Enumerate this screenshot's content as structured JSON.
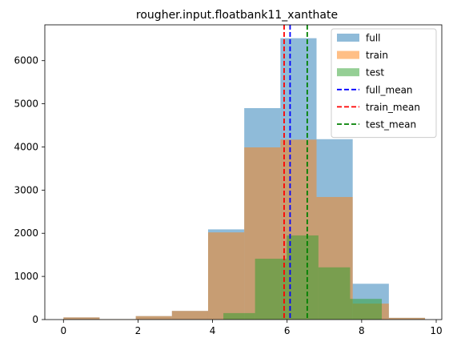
{
  "chart_data": {
    "type": "bar",
    "title": "rougher.input.floatbank11_xanthate",
    "xlabel": "",
    "ylabel": "",
    "xlim": [
      -0.5,
      10.15
    ],
    "ylim": [
      0,
      6830
    ],
    "x_ticks": [
      0,
      2,
      4,
      6,
      8,
      10
    ],
    "y_ticks": [
      0,
      1000,
      2000,
      3000,
      4000,
      5000,
      6000
    ],
    "series": [
      {
        "name": "full",
        "color": "#1f77b4",
        "opacity": 0.5,
        "bins": [
          {
            "x0": 0.0,
            "x1": 0.97,
            "count": 50
          },
          {
            "x0": 0.97,
            "x1": 1.94,
            "count": 10
          },
          {
            "x0": 1.94,
            "x1": 2.91,
            "count": 80
          },
          {
            "x0": 2.91,
            "x1": 3.88,
            "count": 200
          },
          {
            "x0": 3.88,
            "x1": 4.85,
            "count": 2090
          },
          {
            "x0": 4.85,
            "x1": 5.82,
            "count": 4900
          },
          {
            "x0": 5.82,
            "x1": 6.79,
            "count": 6520
          },
          {
            "x0": 6.79,
            "x1": 7.76,
            "count": 4180
          },
          {
            "x0": 7.76,
            "x1": 8.73,
            "count": 830
          },
          {
            "x0": 8.73,
            "x1": 9.7,
            "count": 40
          }
        ]
      },
      {
        "name": "train",
        "color": "#ff7f0e",
        "opacity": 0.5,
        "bins": [
          {
            "x0": 0.0,
            "x1": 0.97,
            "count": 50
          },
          {
            "x0": 0.97,
            "x1": 1.94,
            "count": 10
          },
          {
            "x0": 1.94,
            "x1": 2.91,
            "count": 80
          },
          {
            "x0": 2.91,
            "x1": 3.88,
            "count": 200
          },
          {
            "x0": 3.88,
            "x1": 4.85,
            "count": 2020
          },
          {
            "x0": 4.85,
            "x1": 5.82,
            "count": 3990
          },
          {
            "x0": 5.82,
            "x1": 6.79,
            "count": 4170
          },
          {
            "x0": 6.79,
            "x1": 7.76,
            "count": 2840
          },
          {
            "x0": 7.76,
            "x1": 8.73,
            "count": 370
          },
          {
            "x0": 8.73,
            "x1": 9.7,
            "count": 40
          }
        ]
      },
      {
        "name": "test",
        "color": "#2ca02c",
        "opacity": 0.5,
        "bins": [
          {
            "x0": 4.29,
            "x1": 5.14,
            "count": 150
          },
          {
            "x0": 5.14,
            "x1": 5.99,
            "count": 1410
          },
          {
            "x0": 5.99,
            "x1": 6.84,
            "count": 1950
          },
          {
            "x0": 6.84,
            "x1": 7.69,
            "count": 1210
          },
          {
            "x0": 7.69,
            "x1": 8.54,
            "count": 480
          }
        ]
      }
    ],
    "mean_lines": [
      {
        "name": "full_mean",
        "x": 6.08,
        "color": "#0000ff"
      },
      {
        "name": "train_mean",
        "x": 5.92,
        "color": "#ff0000"
      },
      {
        "name": "test_mean",
        "x": 6.54,
        "color": "#008000"
      }
    ],
    "legend": {
      "placement": "top-right",
      "entries": [
        {
          "label": "full",
          "kind": "patch",
          "color": "#1f77b4",
          "opacity": 0.5
        },
        {
          "label": "train",
          "kind": "patch",
          "color": "#ff7f0e",
          "opacity": 0.5
        },
        {
          "label": "test",
          "kind": "patch",
          "color": "#2ca02c",
          "opacity": 0.5
        },
        {
          "label": "full_mean",
          "kind": "dashed-line",
          "color": "#0000ff"
        },
        {
          "label": "train_mean",
          "kind": "dashed-line",
          "color": "#ff0000"
        },
        {
          "label": "test_mean",
          "kind": "dashed-line",
          "color": "#008000"
        }
      ]
    },
    "grid": false
  }
}
